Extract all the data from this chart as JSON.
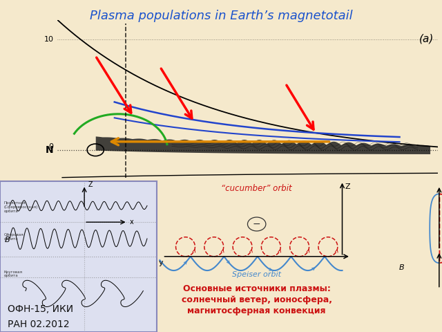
{
  "title": "Plasma populations in Earth’s magnetotail",
  "title_color": "#1a52cc",
  "title_fontsize": 13,
  "bg_color": "#f5e9cc",
  "white_panel_bg": "#f0ede0",
  "blue_panel_bg": "#dde0f0",
  "label_ofn": "ОФН-15, ИКИ",
  "label_ran": "РАН 02.2012",
  "label_color": "#111111",
  "subtitle_russian": "Основные источники плазмы:\nсолнечный ветер, ионосфера,\nмагнитосферная конвекция",
  "subtitle_color": "#cc1111",
  "cucumber_label": "“cucumber” orbit",
  "cucumber_color": "#cc1111",
  "speiser_label": "Speiser orbit",
  "speiser_color": "#4488cc",
  "panel_a_label": "(a)"
}
